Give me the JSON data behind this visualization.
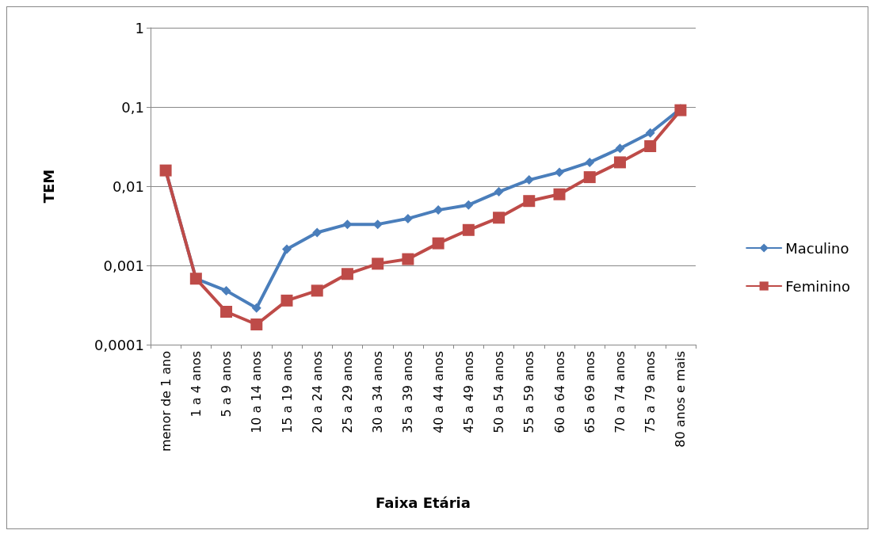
{
  "chart_data": {
    "type": "line",
    "xlabel": "Faixa Etária",
    "ylabel": "TEM",
    "log": "y",
    "grid": "y",
    "legend": "right",
    "line_style": "solid",
    "categories": [
      "menor de 1 ano",
      "1 a 4 anos",
      "5 a 9 anos",
      "10 a 14 anos",
      "15 a 19 anos",
      "20 a 24 anos",
      "25 a 29 anos",
      "30 a 34 anos",
      "35 a 39 anos",
      "40 a 44 anos",
      "45 a 49 anos",
      "50 a 54 anos",
      "55 a 59 anos",
      "60 a 64 anos",
      "65 a 69 anos",
      "70 a 74 anos",
      "75 a 79 anos",
      "80 anos e mais"
    ],
    "ylim": [
      0.0001,
      1
    ],
    "yticks": [
      {
        "value": 0.0001,
        "label": "0,0001"
      },
      {
        "value": 0.001,
        "label": "0,001"
      },
      {
        "value": 0.01,
        "label": "0,01"
      },
      {
        "value": 0.1,
        "label": "0,1"
      },
      {
        "value": 1,
        "label": "1"
      }
    ],
    "series": [
      {
        "name": "Maculino",
        "color": "#4a7ebb",
        "marker": "diamond",
        "values": [
          0.0158,
          0.00068,
          0.00048,
          0.00029,
          0.0016,
          0.0026,
          0.0033,
          0.0033,
          0.0039,
          0.005,
          0.0058,
          0.0085,
          0.012,
          0.015,
          0.02,
          0.03,
          0.047,
          0.095
        ]
      },
      {
        "name": "Feminino",
        "color": "#be4b48",
        "marker": "square",
        "values": [
          0.0158,
          0.00068,
          0.00026,
          0.00018,
          0.00036,
          0.00048,
          0.00078,
          0.00105,
          0.0012,
          0.0019,
          0.0028,
          0.004,
          0.0065,
          0.0079,
          0.013,
          0.02,
          0.032,
          0.091
        ]
      }
    ]
  }
}
